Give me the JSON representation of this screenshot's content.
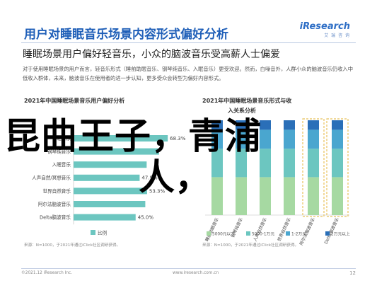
{
  "header": {
    "title": "用户对睡眠音乐场景内容形式偏好分析",
    "logo_main": "iResearch",
    "logo_sub": "艾 瑞 咨 询"
  },
  "subtitle": "睡眠场景用户偏好轻音乐，小众的脑波音乐受高薪人士偏爱",
  "body_text": "对于使用睡眠场景的用户而言，轻音乐形式（睡前助眠音乐、钢琴纯音乐、入眠音乐）更受欢迎。然而，白噪音外，人群小众的脑波音乐仍收入中低收入群体，未来，脑波音乐在使用者的进一步认知，更多受众会转型为偏好内容形式。",
  "overlay_text": {
    "line1": "昆曲王子，青浦",
    "line2": "人，"
  },
  "chart_data": [
    {
      "type": "bar",
      "orientation": "horizontal",
      "title": "2021年中国睡眠场景音乐用户偏好分析",
      "categories": [
        "轻音乐",
        "钢琴纯音乐",
        "入眠音乐",
        "人声自然/冥想音乐",
        "世界自然音乐",
        "阿尔法脑波音乐",
        "Delta脑波音乐"
      ],
      "values": [
        68.3,
        62.0,
        53.0,
        47.9,
        53.3,
        52.0,
        45.0
      ],
      "value_labels": [
        "68.3%",
        "",
        "",
        "47.9%",
        "53.3%",
        "",
        "45.0%"
      ],
      "xlim": [
        0,
        80
      ],
      "color": "#6cc6c0",
      "legend": [
        {
          "name": "比例",
          "color": "#6cc6c0"
        }
      ],
      "note": "来源：N=1000，于2021年通过iClick社区调研获得。"
    },
    {
      "type": "bar",
      "stacked": true,
      "title": "2021年中国睡眠场景音乐形式与收",
      "subtitle": "入关系分析",
      "categories": [
        "睡前助眠音乐",
        "钢琴纯音乐",
        "人声自然音乐",
        "世界自然音乐",
        "阿尔法脑波音乐",
        "Delta脑波音乐"
      ],
      "ylim": [
        0,
        100
      ],
      "series": [
        {
          "name": "5000元以下",
          "color": "#a6d9a2",
          "values": [
            40,
            40,
            40,
            40,
            40,
            40
          ]
        },
        {
          "name": "5000-1万元",
          "color": "#6cc6c0",
          "values": [
            30,
            30,
            30,
            30,
            30,
            30
          ]
        },
        {
          "name": "1-2万元",
          "color": "#4aa6cf",
          "values": [
            20,
            20,
            20,
            20,
            20,
            20
          ]
        },
        {
          "name": "2万元以上",
          "color": "#2a6fb8",
          "values": [
            10,
            10,
            10,
            10,
            10,
            10
          ]
        }
      ],
      "highlight_categories": [
        "阿尔法脑波音乐",
        "Delta脑波音乐"
      ],
      "highlight_color": "#e8c25a",
      "note": "来源：N=1000，于2021年通过iClick社区调研获得。"
    }
  ],
  "footer": {
    "left": "©2021.12 iResearch Inc.",
    "mid": "www.iresearch.com.cn",
    "page": "12"
  }
}
